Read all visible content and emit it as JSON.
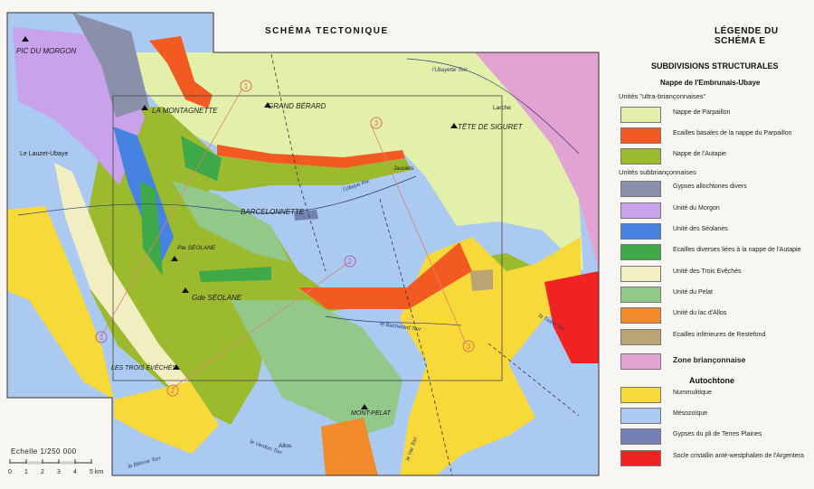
{
  "header": {
    "map_title": "SCHÉMA TECTONIQUE",
    "legend_title": "LÉGENDE DU SCHÉMA E"
  },
  "legend": {
    "heading": "SUBDIVISIONS STRUCTURALES",
    "nappe_title": "Nappe de l'Embrunais-Ubaye",
    "group_ultra": "Unités \"ultra-briançonnaises\"",
    "group_subbri": "Unités subbriançonnaises",
    "autochtone_title": "Autochtone",
    "items": [
      {
        "label": "Nappe de Parpaillon",
        "color": "#e2f0aa"
      },
      {
        "label": "Ecailles basales de la nappe du Parpaillon",
        "color": "#f25a22"
      },
      {
        "label": "Nappe de l'Autapie",
        "color": "#9cba2e"
      },
      {
        "label": "Gypses allochtones divers",
        "color": "#8a90aa"
      },
      {
        "label": "Unité du Morgon",
        "color": "#c8a2ea"
      },
      {
        "label": "Unité des Séolanes",
        "color": "#4682e2"
      },
      {
        "label": "Ecailles diverses liées à la nappe de l'Autapie",
        "color": "#3fa848"
      },
      {
        "label": "Unité des Trois Evêchés",
        "color": "#f2eec2"
      },
      {
        "label": "Unité du Pelat",
        "color": "#92c88a"
      },
      {
        "label": "Unité du lac d'Allos",
        "color": "#f08a2a"
      },
      {
        "label": "Ecailles inférieures de Restefond",
        "color": "#bba474"
      },
      {
        "label": "Zone briançonnaise",
        "color": "#e2a2d2"
      },
      {
        "label": "Nummulitique",
        "color": "#f8d93a"
      },
      {
        "label": "Mésozoïque",
        "color": "#aacaf2"
      },
      {
        "label": "Gypses du pli de Terres Plaines",
        "color": "#7280b2"
      },
      {
        "label": "Socle cristallin anté-westphalien de l'Argentera",
        "color": "#f02222"
      }
    ]
  },
  "map": {
    "peaks": [
      "PIC DU MORGON",
      "LA MONTAGNETTE",
      "GRAND BÉRARD",
      "TÊTE DE SIGURET",
      "Pte SÉOLANE",
      "Gde SÉOLANE",
      "LES TROIS ÉVÊCHÉS",
      "MONT-PELAT"
    ],
    "towns": [
      "Le Lauzet-Ubaye",
      "BARCELONNETTE",
      "Larche",
      "Jausiers",
      "Allos"
    ],
    "rivers": [
      "l'Ubayette Torr",
      "l'Ubaye Riv.",
      "le Bachelard Torr",
      "le Verdon Torr",
      "le Var Torr",
      "la Bléone Torr",
      "la Tinée Torr"
    ],
    "section_markers": [
      "1",
      "2",
      "3"
    ]
  },
  "scale": {
    "title": "Echelle 1/250 000",
    "ticks": [
      "0",
      "1",
      "2",
      "3",
      "4",
      "5 km"
    ]
  }
}
